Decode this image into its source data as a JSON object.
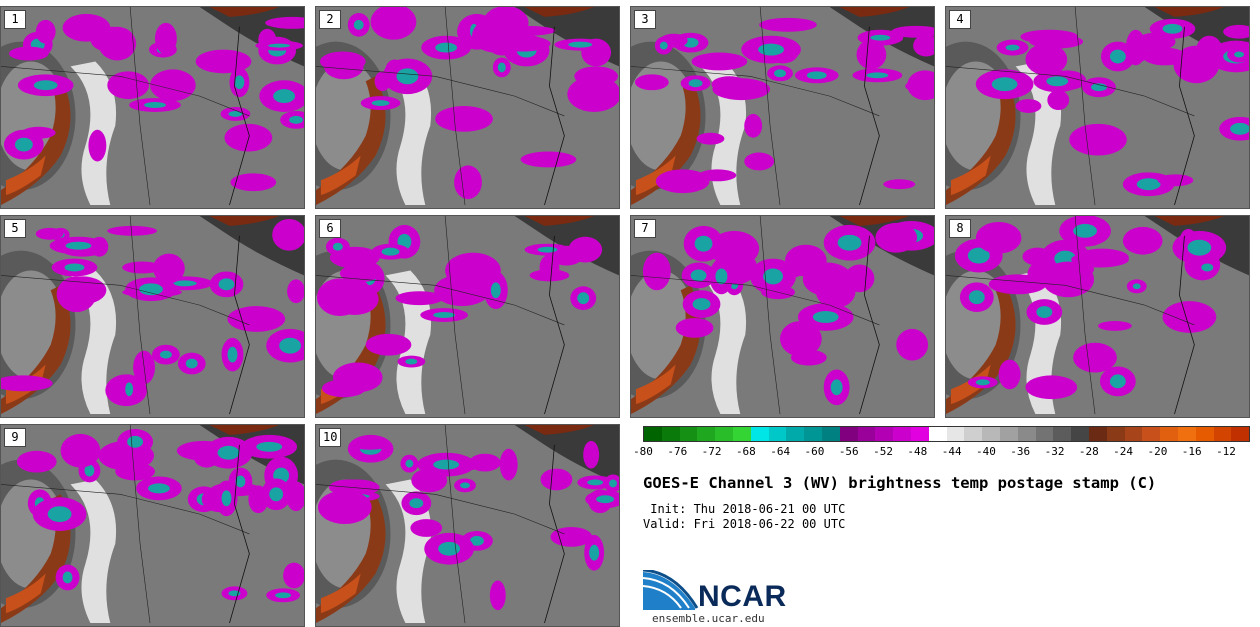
{
  "panels": [
    {
      "label": "1"
    },
    {
      "label": "2"
    },
    {
      "label": "3"
    },
    {
      "label": "4"
    },
    {
      "label": "5"
    },
    {
      "label": "6"
    },
    {
      "label": "7"
    },
    {
      "label": "8"
    },
    {
      "label": "9"
    },
    {
      "label": "10"
    }
  ],
  "colorbar": {
    "tick_labels": [
      "-80",
      "-76",
      "-72",
      "-68",
      "-64",
      "-60",
      "-56",
      "-52",
      "-48",
      "-44",
      "-40",
      "-36",
      "-32",
      "-28",
      "-24",
      "-20",
      "-16",
      "-12"
    ],
    "colors": [
      "#006400",
      "#0a7a0a",
      "#159015",
      "#1fa71f",
      "#29bd29",
      "#33d433",
      "#00e6e6",
      "#00c8c8",
      "#00aaaa",
      "#009696",
      "#008080",
      "#800080",
      "#9a009a",
      "#b400b4",
      "#cc00cc",
      "#e000e0",
      "#ffffff",
      "#e6e6e6",
      "#cfcfcf",
      "#b8b8b8",
      "#a1a1a1",
      "#8a8a8a",
      "#737373",
      "#5c5c5c",
      "#454545",
      "#6b2a14",
      "#8b3a18",
      "#a8441a",
      "#c8501a",
      "#e06010",
      "#f07010",
      "#e65a00",
      "#d24400",
      "#c03000"
    ]
  },
  "title": "GOES-E Channel 3 (WV) brightness temp postage stamp (C)",
  "init": " Init: Thu 2018-06-21 00 UTC",
  "valid": "Valid: Fri 2018-06-22 00 UTC",
  "logo": {
    "name": "NCAR",
    "url": "ensemble.ucar.edu"
  }
}
